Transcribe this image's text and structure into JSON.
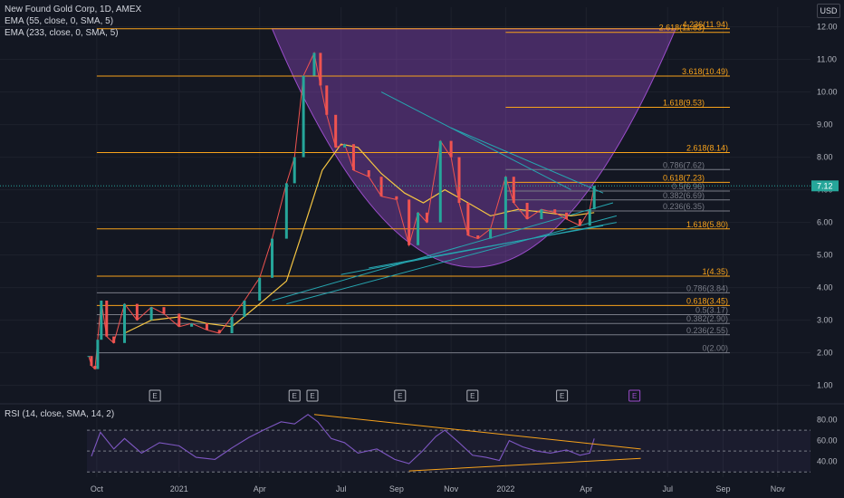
{
  "header": {
    "title": "New Found Gold Corp, 1D, AMEX",
    "indicators": [
      "EMA (55, close, 0, SMA, 5)",
      "EMA (233, close, 0, SMA, 5)"
    ],
    "currency": "USD"
  },
  "rsi_panel": {
    "title": "RSI (14, close, SMA, 14, 2)",
    "ticks": [
      "80.00",
      "60.00",
      "40.00"
    ]
  },
  "chart_data": {
    "type": "line",
    "ylim": [
      0.6,
      12.6
    ],
    "y_ticks": [
      "1.00",
      "2.00",
      "3.00",
      "4.00",
      "5.00",
      "6.00",
      "7.00",
      "8.00",
      "9.00",
      "10.00",
      "11.00",
      "12.00"
    ],
    "x_ticks": [
      "Oct",
      "2021",
      "Apr",
      "Jul",
      "Sep",
      "Nov",
      "2022",
      "Apr",
      "Jul",
      "Sep",
      "Nov"
    ],
    "price_label": "7.12",
    "price_label_color": "#26a69a",
    "price_series": {
      "name": "",
      "x": [
        "2020-09-22",
        "2020-09-25",
        "2020-09-29",
        "2020-10-02",
        "2020-10-06",
        "2020-10-12",
        "2020-10-20",
        "2020-11-01",
        "2020-11-15",
        "2020-12-01",
        "2020-12-15",
        "2021-01-01",
        "2021-01-15",
        "2021-02-01",
        "2021-02-15",
        "2021-03-01",
        "2021-03-15",
        "2021-04-01",
        "2021-04-15",
        "2021-05-01",
        "2021-05-10",
        "2021-05-20",
        "2021-06-01",
        "2021-06-08",
        "2021-06-15",
        "2021-06-25",
        "2021-07-05",
        "2021-07-15",
        "2021-08-01",
        "2021-08-15",
        "2021-09-01",
        "2021-09-15",
        "2021-09-25",
        "2021-10-05",
        "2021-10-20",
        "2021-11-01",
        "2021-11-10",
        "2021-11-20",
        "2021-12-01",
        "2021-12-15",
        "2022-01-01",
        "2022-01-10",
        "2022-01-25",
        "2022-02-10",
        "2022-02-25",
        "2022-03-10",
        "2022-03-25",
        "2022-04-05",
        "2022-04-10"
      ],
      "y": [
        1.9,
        1.6,
        1.5,
        2.4,
        3.6,
        2.5,
        2.3,
        3.5,
        3.0,
        3.4,
        3.2,
        2.8,
        2.9,
        2.7,
        2.6,
        3.1,
        3.6,
        4.3,
        5.5,
        7.2,
        8.0,
        10.5,
        11.2,
        10.2,
        9.3,
        8.3,
        8.4,
        7.6,
        7.4,
        6.8,
        6.7,
        5.3,
        6.3,
        6.0,
        8.5,
        8.0,
        6.6,
        5.6,
        5.5,
        5.8,
        7.4,
        6.6,
        6.1,
        6.4,
        6.3,
        6.1,
        5.9,
        6.4,
        7.12
      ]
    },
    "ema55": {
      "x": [
        "2020-11-01",
        "2020-12-01",
        "2021-01-01",
        "2021-02-01",
        "2021-03-01",
        "2021-04-01",
        "2021-05-01",
        "2021-05-20",
        "2021-06-10",
        "2021-07-01",
        "2021-07-20",
        "2021-08-15",
        "2021-09-10",
        "2021-10-01",
        "2021-10-25",
        "2021-11-20",
        "2021-12-15",
        "2022-01-15",
        "2022-02-15",
        "2022-03-15",
        "2022-04-10"
      ],
      "y": [
        2.6,
        3.0,
        3.1,
        2.9,
        2.8,
        3.5,
        4.2,
        5.8,
        7.6,
        8.4,
        8.3,
        7.5,
        6.9,
        6.6,
        7.0,
        6.6,
        6.2,
        6.4,
        6.3,
        6.2,
        6.3
      ]
    },
    "bowl_arc_color": "#9c4dcc",
    "fib_levels": [
      {
        "label": "0(2.00)",
        "value": 2.0,
        "color": "#787b86"
      },
      {
        "label": "0.236(2.55)",
        "value": 2.55,
        "color": "#787b86"
      },
      {
        "label": "0.382(2.90)",
        "value": 2.9,
        "color": "#787b86"
      },
      {
        "label": "0.5(3.17)",
        "value": 3.17,
        "color": "#787b86"
      },
      {
        "label": "0.618(3.45)",
        "value": 3.45,
        "color": "#f7a21b"
      },
      {
        "label": "0.786(3.84)",
        "value": 3.84,
        "color": "#787b86"
      },
      {
        "label": "1(4.35)",
        "value": 4.35,
        "color": "#f7a21b"
      },
      {
        "label": "1.618(5.80)",
        "value": 5.8,
        "color": "#f7a21b"
      },
      {
        "label": "2.618(8.14)",
        "value": 8.14,
        "color": "#f7a21b"
      },
      {
        "label": "3.618(10.49)",
        "value": 10.49,
        "color": "#f7a21b"
      },
      {
        "label": "4.236(11.94)",
        "value": 11.94,
        "color": "#f7a21b"
      }
    ],
    "fib_levels_2": [
      {
        "label": "0.236(6.35)",
        "value": 6.35,
        "color": "#787b86"
      },
      {
        "label": "0.382(6.69)",
        "value": 6.69,
        "color": "#787b86"
      },
      {
        "label": "0.5(6.96)",
        "value": 6.96,
        "color": "#787b86"
      },
      {
        "label": "0.618(7.23)",
        "value": 7.23,
        "color": "#f7a21b"
      },
      {
        "label": "0.786(7.62)",
        "value": 7.62,
        "color": "#787b86"
      },
      {
        "label": "1.618(9.53)",
        "value": 9.53,
        "color": "#f7a21b"
      },
      {
        "label": "2.618(11.83)",
        "value": 11.83,
        "color": "#f7a21b"
      }
    ],
    "earnings_markers": [
      "E",
      "E",
      "E",
      "E",
      "E",
      "E",
      "E"
    ],
    "rsi": {
      "ylim": [
        25,
        90
      ],
      "x": [
        "2020-09-25",
        "2020-10-05",
        "2020-10-20",
        "2020-11-01",
        "2020-11-20",
        "2020-12-10",
        "2021-01-01",
        "2021-01-20",
        "2021-02-10",
        "2021-03-01",
        "2021-03-20",
        "2021-04-05",
        "2021-04-25",
        "2021-05-10",
        "2021-05-25",
        "2021-06-05",
        "2021-06-20",
        "2021-07-05",
        "2021-07-20",
        "2021-08-10",
        "2021-08-30",
        "2021-09-15",
        "2021-09-30",
        "2021-10-15",
        "2021-10-25",
        "2021-11-10",
        "2021-11-25",
        "2021-12-10",
        "2021-12-25",
        "2022-01-05",
        "2022-01-20",
        "2022-02-05",
        "2022-02-20",
        "2022-03-10",
        "2022-03-25",
        "2022-04-05",
        "2022-04-10"
      ],
      "y": [
        45,
        68,
        52,
        62,
        48,
        58,
        55,
        44,
        42,
        53,
        63,
        70,
        78,
        76,
        85,
        78,
        62,
        58,
        48,
        52,
        42,
        38,
        50,
        64,
        70,
        58,
        46,
        44,
        41,
        60,
        54,
        50,
        48,
        51,
        46,
        48,
        62
      ]
    }
  }
}
